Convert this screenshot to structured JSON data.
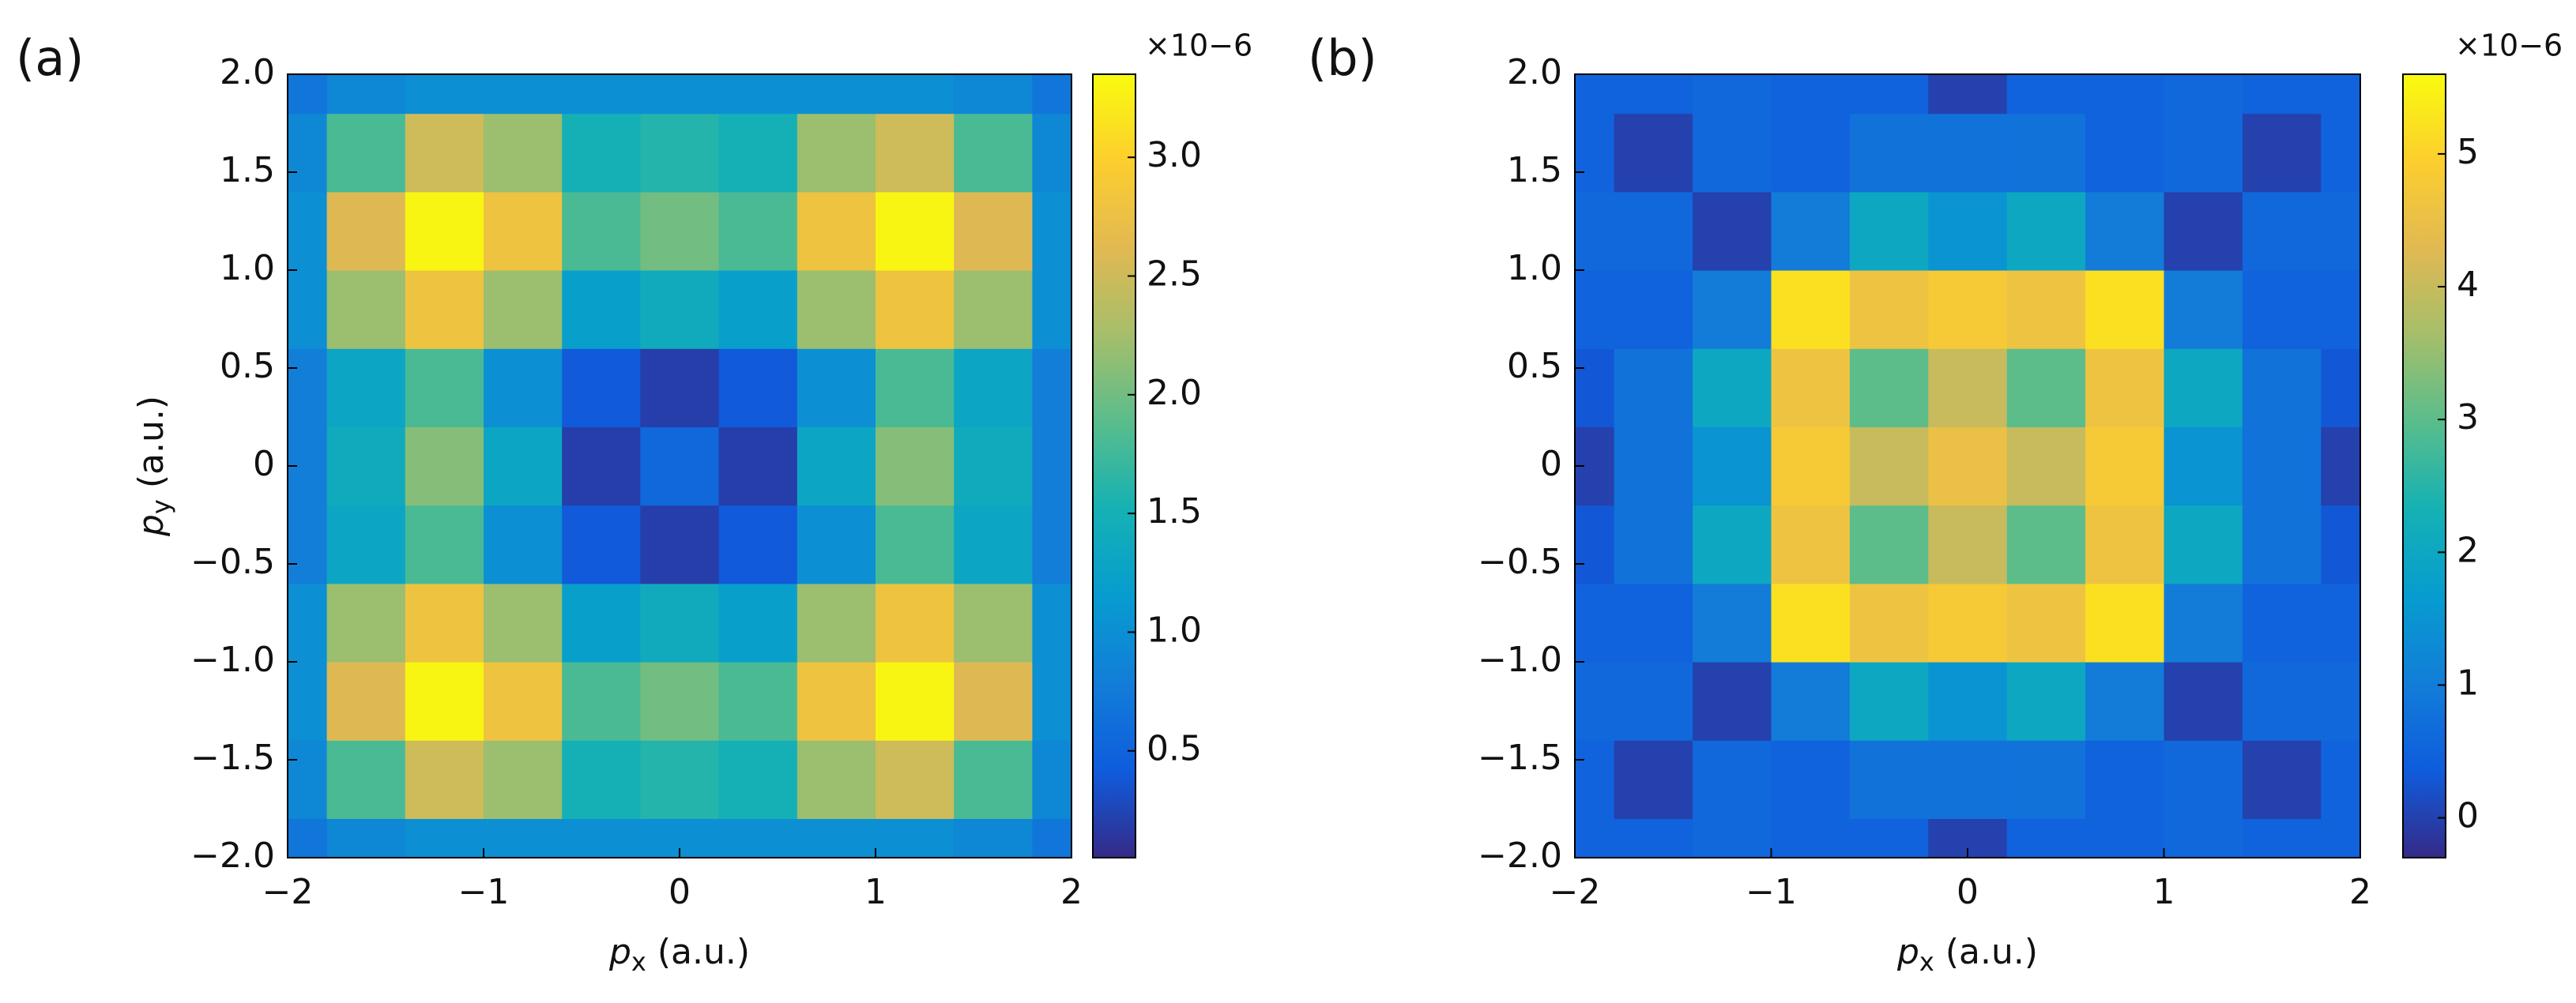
{
  "chart_data": [
    {
      "type": "heatmap",
      "panel_label": "(a)",
      "colormap": "parula",
      "xlabel": {
        "symbol": "p",
        "subscript": "x",
        "unit": " (a.u.)"
      },
      "ylabel": {
        "symbol": "p",
        "subscript": "y",
        "unit": " (a.u.)"
      },
      "x": [
        -2,
        -1.6,
        -1.2,
        -0.8,
        -0.4,
        0,
        0.4,
        0.8,
        1.2,
        1.6,
        2
      ],
      "y": [
        -2,
        -1.6,
        -1.2,
        -0.8,
        -0.4,
        0,
        0.4,
        0.8,
        1.2,
        1.6,
        2
      ],
      "z": [
        [
          0.7,
          0.9,
          1.0,
          1.0,
          1.0,
          1.0,
          1.0,
          1.0,
          1.0,
          0.9,
          0.7
        ],
        [
          0.9,
          1.8,
          2.5,
          2.2,
          1.5,
          1.6,
          1.5,
          2.2,
          2.5,
          1.8,
          0.9
        ],
        [
          1.0,
          2.6,
          3.3,
          2.8,
          1.8,
          2.0,
          1.8,
          2.8,
          3.3,
          2.6,
          1.0
        ],
        [
          1.0,
          2.2,
          2.8,
          2.2,
          1.2,
          1.4,
          1.2,
          2.2,
          2.8,
          2.2,
          1.0
        ],
        [
          0.8,
          1.3,
          1.8,
          1.0,
          0.4,
          0.2,
          0.4,
          1.0,
          1.8,
          1.3,
          0.8
        ],
        [
          0.8,
          1.4,
          2.1,
          1.3,
          0.2,
          0.55,
          0.2,
          1.3,
          2.1,
          1.4,
          0.8
        ],
        [
          0.8,
          1.3,
          1.8,
          1.0,
          0.4,
          0.2,
          0.4,
          1.0,
          1.8,
          1.3,
          0.8
        ],
        [
          1.0,
          2.2,
          2.8,
          2.2,
          1.2,
          1.4,
          1.2,
          2.2,
          2.8,
          2.2,
          1.0
        ],
        [
          1.0,
          2.6,
          3.3,
          2.8,
          1.8,
          2.0,
          1.8,
          2.8,
          3.3,
          2.6,
          1.0
        ],
        [
          0.9,
          1.8,
          2.5,
          2.2,
          1.5,
          1.6,
          1.5,
          2.2,
          2.5,
          1.8,
          0.9
        ],
        [
          0.7,
          0.9,
          1.0,
          1.0,
          1.0,
          1.0,
          1.0,
          1.0,
          1.0,
          0.9,
          0.7
        ]
      ],
      "xlim": [
        -2,
        2
      ],
      "ylim": [
        -2,
        2
      ],
      "xticks": [
        {
          "value": -2,
          "label": "−2"
        },
        {
          "value": -1,
          "label": "−1"
        },
        0,
        1,
        2
      ],
      "yticks": [
        {
          "value": -2,
          "label": "−2.0"
        },
        {
          "value": -1.5,
          "label": "−1.5"
        },
        {
          "value": -1,
          "label": "−1.0"
        },
        {
          "value": -0.5,
          "label": "−0.5"
        },
        0,
        0.5,
        {
          "value": 1,
          "label": "1.0"
        },
        1.5,
        {
          "value": 2,
          "label": "2.0"
        }
      ],
      "clim": [
        0.05,
        3.35
      ],
      "cticks": [
        0.5,
        {
          "value": 1,
          "label": "1.0"
        },
        1.5,
        {
          "value": 2,
          "label": "2.0"
        },
        2.5,
        {
          "value": 3,
          "label": "3.0"
        }
      ],
      "colorbar_multiplier": "×10−6"
    },
    {
      "type": "heatmap",
      "panel_label": "(b)",
      "colormap": "parula",
      "xlabel": {
        "symbol": "p",
        "subscript": "x",
        "unit": " (a.u.)"
      },
      "x": [
        -2,
        -1.6,
        -1.2,
        -0.8,
        -0.4,
        0,
        0.4,
        0.8,
        1.2,
        1.6,
        2
      ],
      "y": [
        -2,
        -1.6,
        -1.2,
        -0.8,
        -0.4,
        0,
        0.4,
        0.8,
        1.2,
        1.6,
        2
      ],
      "z": [
        [
          0.5,
          0.5,
          0.6,
          0.5,
          0.5,
          0,
          0.5,
          0.5,
          0.6,
          0.5,
          0.5
        ],
        [
          0.5,
          0,
          0.6,
          0.5,
          0.8,
          0.8,
          0.8,
          0.5,
          0.6,
          0,
          0.5
        ],
        [
          0.6,
          0.6,
          0,
          1.0,
          2.0,
          1.5,
          2.0,
          1.0,
          0,
          0.6,
          0.6
        ],
        [
          0.5,
          0.5,
          1.0,
          5.2,
          4.6,
          4.8,
          4.6,
          5.2,
          1.0,
          0.5,
          0.5
        ],
        [
          0.3,
          0.8,
          2.0,
          4.6,
          3.0,
          4.0,
          3.0,
          4.6,
          2.0,
          0.8,
          0.3
        ],
        [
          0,
          0.8,
          1.5,
          4.8,
          4.0,
          4.5,
          4.0,
          4.8,
          1.5,
          0.8,
          0
        ],
        [
          0.3,
          0.8,
          2.0,
          4.6,
          3.0,
          4.0,
          3.0,
          4.6,
          2.0,
          0.8,
          0.3
        ],
        [
          0.5,
          0.5,
          1.0,
          5.2,
          4.6,
          4.8,
          4.6,
          5.2,
          1.0,
          0.5,
          0.5
        ],
        [
          0.6,
          0.6,
          0,
          1.0,
          2.0,
          1.5,
          2.0,
          1.0,
          0,
          0.6,
          0.6
        ],
        [
          0.5,
          0,
          0.6,
          0.5,
          0.8,
          0.8,
          0.8,
          0.5,
          0.6,
          0,
          0.5
        ],
        [
          0.5,
          0.5,
          0.6,
          0.5,
          0.5,
          0,
          0.5,
          0.5,
          0.6,
          0.5,
          0.5
        ]
      ],
      "xlim": [
        -2,
        2
      ],
      "ylim": [
        -2,
        2
      ],
      "xticks": [
        {
          "value": -2,
          "label": "−2"
        },
        {
          "value": -1,
          "label": "−1"
        },
        0,
        1,
        2
      ],
      "yticks": [
        {
          "value": -2,
          "label": "−2.0"
        },
        {
          "value": -1.5,
          "label": "−1.5"
        },
        {
          "value": -1,
          "label": "−1.0"
        },
        {
          "value": -0.5,
          "label": "−0.5"
        },
        0,
        0.5,
        {
          "value": 1,
          "label": "1.0"
        },
        1.5,
        {
          "value": 2,
          "label": "2.0"
        }
      ],
      "clim": [
        -0.3,
        5.6
      ],
      "cticks": [
        0,
        1,
        2,
        3,
        4,
        5
      ],
      "colorbar_multiplier": "×10−6"
    }
  ]
}
